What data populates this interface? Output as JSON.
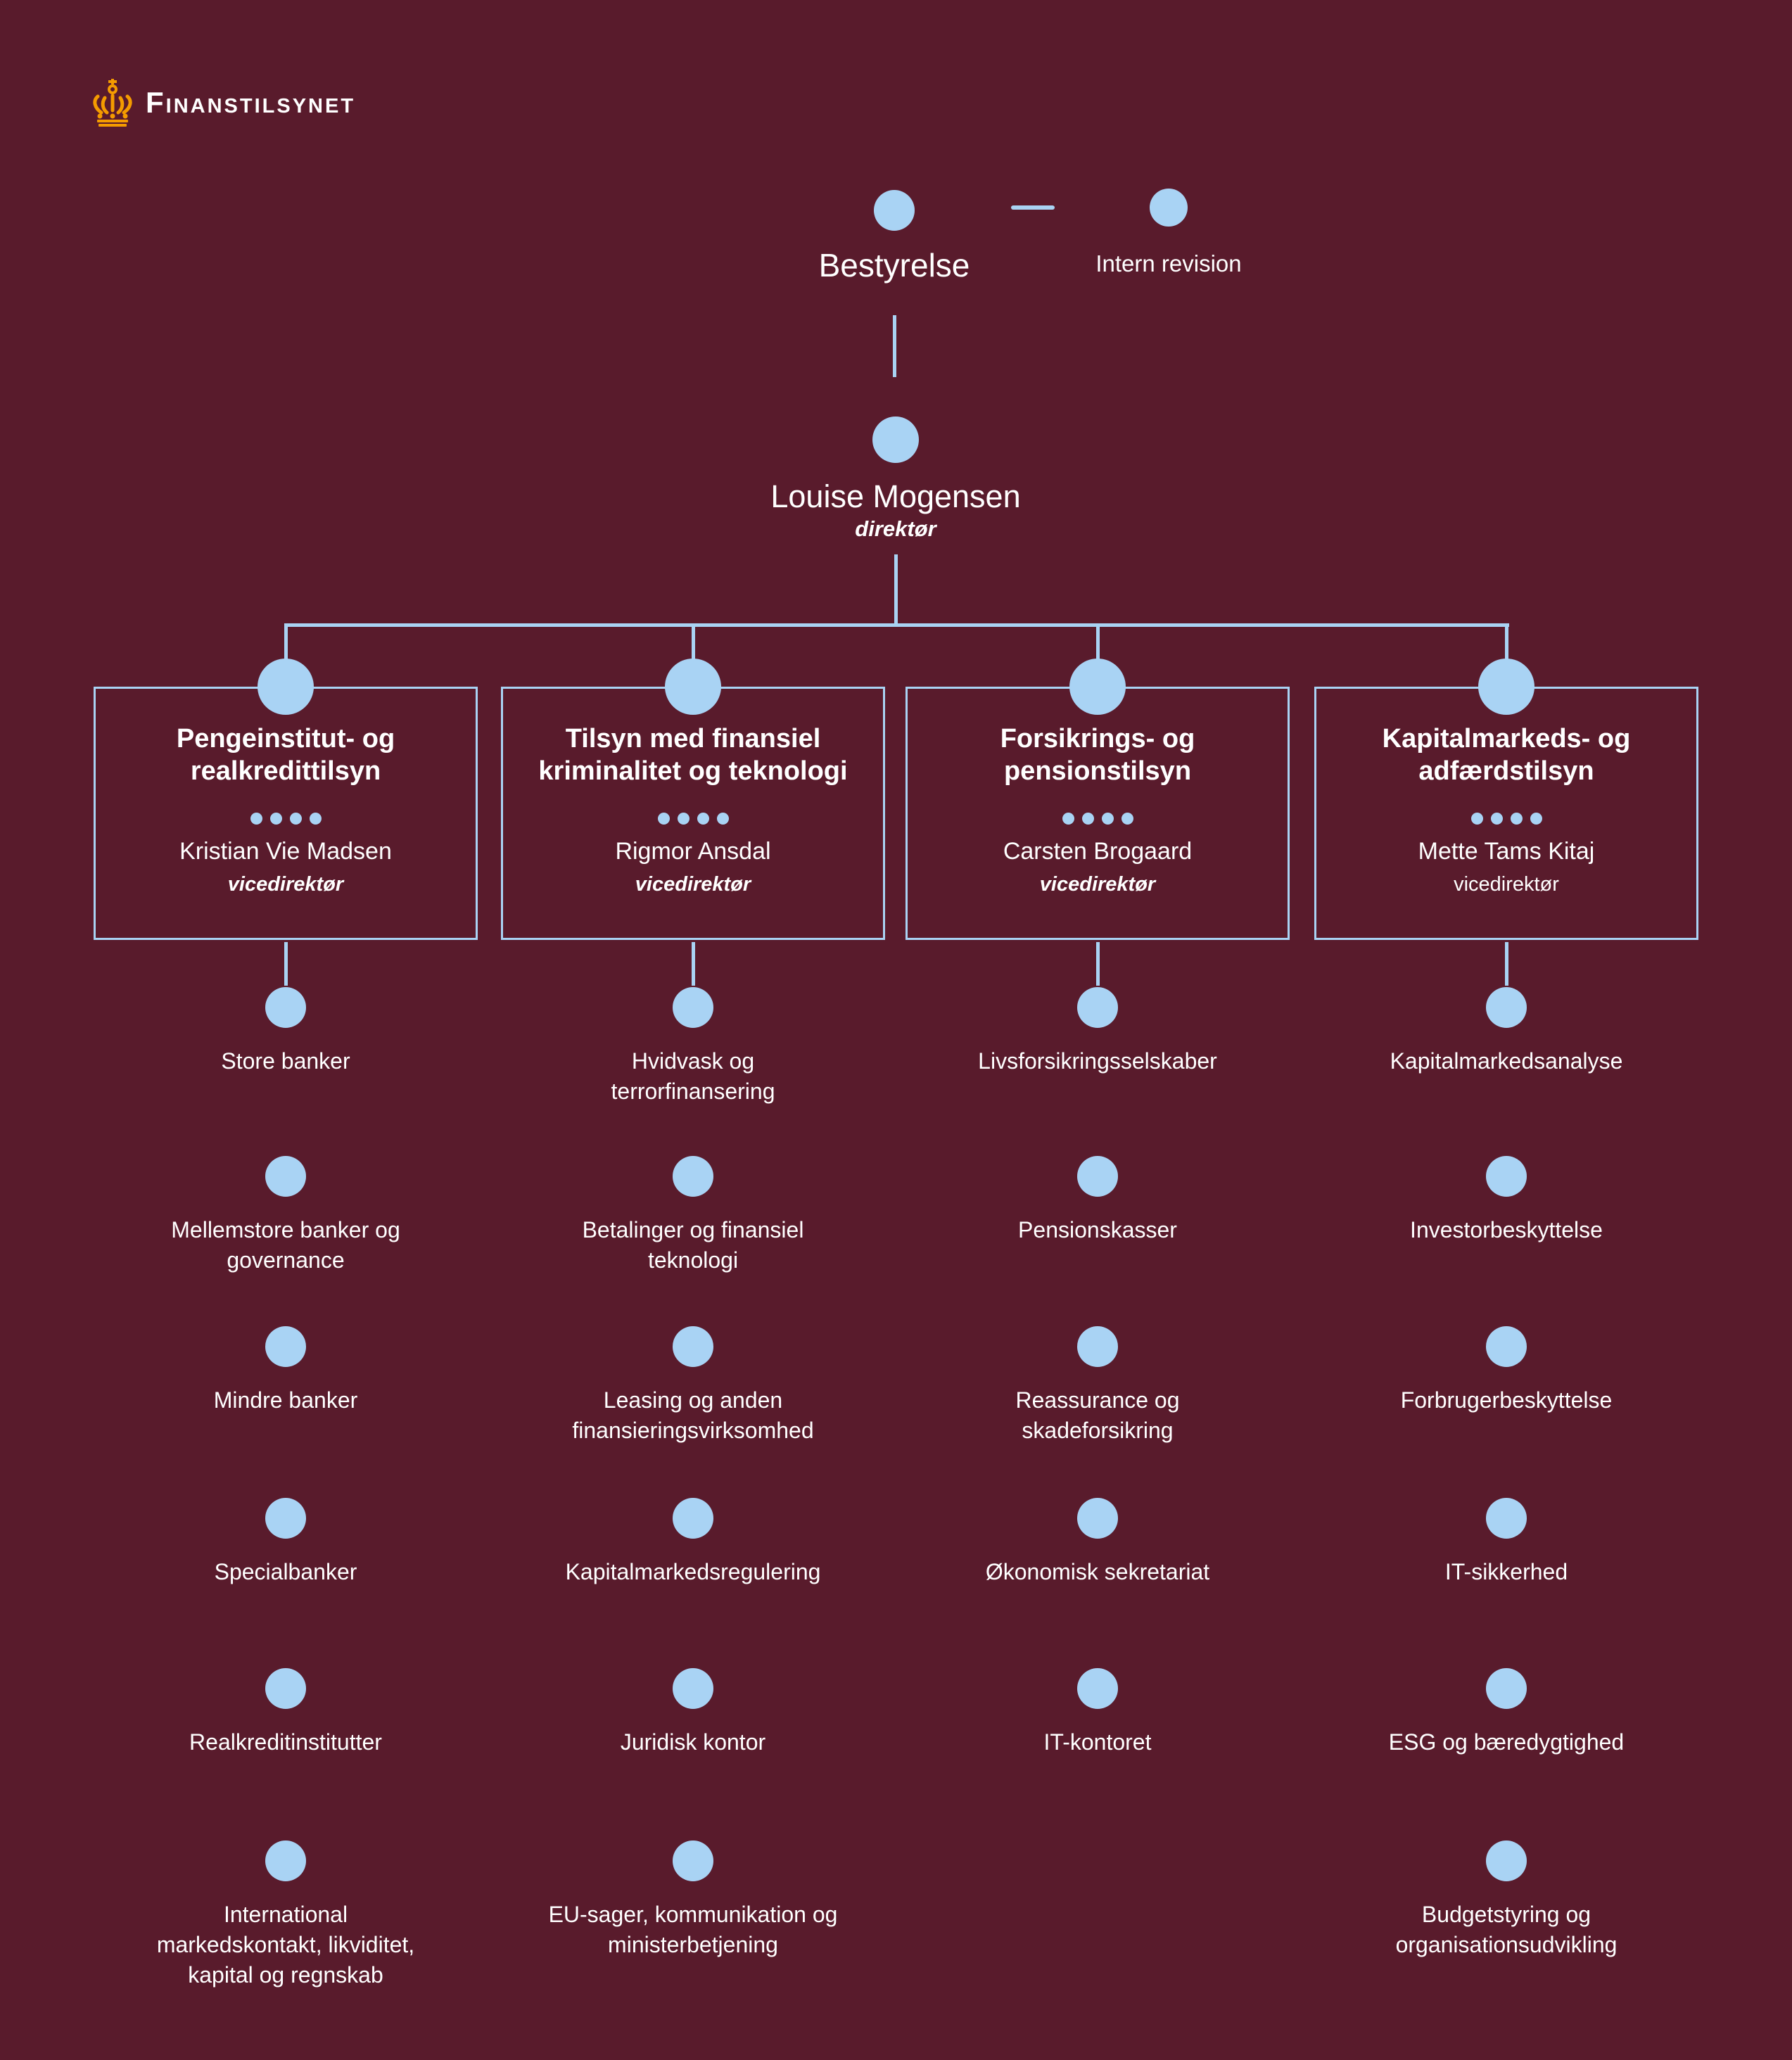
{
  "logo": {
    "text": "Finanstilsynet"
  },
  "colors": {
    "background": "#591B2C",
    "accent": "#A9D3F4",
    "text": "#FFFFFF",
    "crown": "#F49B00"
  },
  "top": {
    "board_label": "Bestyrelse",
    "internal_audit_label": "Intern revision",
    "director_name": "Louise Mogensen",
    "director_role": "direktør"
  },
  "departments": [
    {
      "title": "Pengeinstitut- og\nrealkredittilsyn",
      "head": "Kristian Vie Madsen",
      "head_role": "vicedirektør",
      "units": [
        "Store banker",
        "Mellemstore banker og\ngovernance",
        "Mindre banker",
        "Specialbanker",
        "Realkreditinstitutter",
        "International\nmarkedskontakt, likviditet,\nkapital og regnskab"
      ]
    },
    {
      "title": "Tilsyn med finansiel\nkriminalitet og teknologi",
      "head": "Rigmor Ansdal",
      "head_role": "vicedirektør",
      "units": [
        "Hvidvask og\nterrorfinansering",
        "Betalinger og finansiel\nteknologi",
        "Leasing og anden\nfinansieringsvirksomhed",
        "Kapitalmarkedsregulering",
        "Juridisk kontor",
        "EU-sager, kommunikation og\nministerbetjening"
      ]
    },
    {
      "title": "Forsikrings- og\npensionstilsyn",
      "head": "Carsten Brogaard",
      "head_role": "vicedirektør",
      "units": [
        "Livsforsikringsselskaber",
        "Pensionskasser",
        "Reassurance og\nskadeforsikring",
        "Økonomisk sekretariat",
        "IT-kontoret"
      ]
    },
    {
      "title": "Kapitalmarkeds- og\nadfærdstilsyn",
      "head": "Mette Tams Kitaj",
      "head_role": "vicedirektør",
      "units": [
        "Kapitalmarkedsanalyse",
        "Investorbeskyttelse",
        "Forbrugerbeskyttelse",
        "IT-sikkerhed",
        "ESG og bæredygtighed",
        "Budgetstyring og\norganisationsudvikling"
      ]
    }
  ]
}
